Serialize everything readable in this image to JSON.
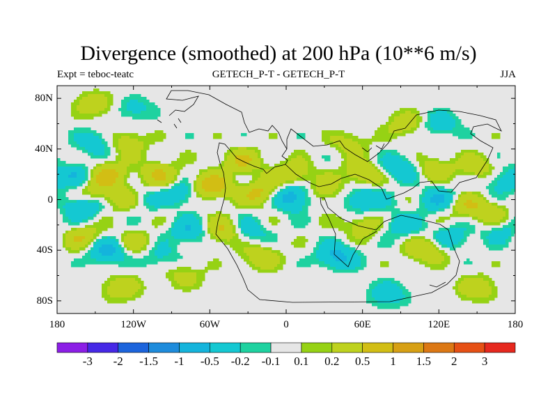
{
  "chart_data": {
    "type": "heatmap",
    "title": "Divergence (smoothed) at 200 hPa (10**6 m/s)",
    "left_string": "Expt = teboc-teatc",
    "center_string": "GETECH_P-T - GETECH_P-T",
    "right_string": "JJA",
    "x_range": [
      -180,
      180
    ],
    "y_range": [
      -90,
      90
    ],
    "x_ticks": [
      {
        "value": -180,
        "label": "180"
      },
      {
        "value": -120,
        "label": "120W"
      },
      {
        "value": -60,
        "label": "60W"
      },
      {
        "value": 0,
        "label": "0"
      },
      {
        "value": 60,
        "label": "60E"
      },
      {
        "value": 120,
        "label": "120E"
      },
      {
        "value": 180,
        "label": "180"
      }
    ],
    "y_ticks": [
      {
        "value": 80,
        "label": "80N"
      },
      {
        "value": 40,
        "label": "40N"
      },
      {
        "value": 0,
        "label": "0"
      },
      {
        "value": -40,
        "label": "40S"
      },
      {
        "value": -80,
        "label": "80S"
      }
    ],
    "contour_levels": [
      {
        "value": -3,
        "label": "-3"
      },
      {
        "value": -2,
        "label": "-2"
      },
      {
        "value": -1.5,
        "label": "-1.5"
      },
      {
        "value": -1,
        "label": "-1"
      },
      {
        "value": -0.5,
        "label": "-0.5"
      },
      {
        "value": -0.2,
        "label": "-0.2"
      },
      {
        "value": -0.1,
        "label": "-0.1"
      },
      {
        "value": 0.1,
        "label": "0.1"
      },
      {
        "value": 0.2,
        "label": "0.2"
      },
      {
        "value": 0.5,
        "label": "0.5"
      },
      {
        "value": 1,
        "label": "1"
      },
      {
        "value": 1.5,
        "label": "1.5"
      },
      {
        "value": 2,
        "label": "2"
      },
      {
        "value": 3,
        "label": "3"
      }
    ],
    "colors": [
      "#8c1ee6",
      "#4628e6",
      "#1c64dc",
      "#1e8cdc",
      "#14b4dc",
      "#14c8d2",
      "#1ed2a0",
      "#e6e6e6",
      "#96d214",
      "#bed21e",
      "#d2be14",
      "#d7a014",
      "#dc7814",
      "#e65014",
      "#e6281e"
    ],
    "anomaly_features": [
      {
        "lon": -150,
        "lat": 75,
        "value": 0.4
      },
      {
        "lon": -120,
        "lat": 72,
        "value": -0.3
      },
      {
        "lon": -150,
        "lat": 45,
        "value": -0.4
      },
      {
        "lon": -125,
        "lat": 45,
        "value": 0.4
      },
      {
        "lon": -165,
        "lat": 20,
        "value": -0.4
      },
      {
        "lon": -140,
        "lat": 20,
        "value": 0.6
      },
      {
        "lon": -100,
        "lat": 20,
        "value": 0.5
      },
      {
        "lon": -150,
        "lat": 5,
        "value": 0.4
      },
      {
        "lon": -160,
        "lat": -5,
        "value": -0.6
      },
      {
        "lon": -125,
        "lat": 0,
        "value": 0.5
      },
      {
        "lon": -115,
        "lat": 0,
        "value": -0.4
      },
      {
        "lon": -80,
        "lat": 5,
        "value": -0.5
      },
      {
        "lon": -60,
        "lat": 10,
        "value": 0.8
      },
      {
        "lon": -35,
        "lat": 30,
        "value": 0.5
      },
      {
        "lon": -20,
        "lat": 5,
        "value": 0.6
      },
      {
        "lon": 5,
        "lat": 20,
        "value": 0.5
      },
      {
        "lon": 5,
        "lat": 2,
        "value": -0.8
      },
      {
        "lon": 30,
        "lat": 5,
        "value": 0.4
      },
      {
        "lon": 60,
        "lat": 20,
        "value": 0.5
      },
      {
        "lon": 50,
        "lat": 45,
        "value": 0.3
      },
      {
        "lon": 90,
        "lat": 25,
        "value": -0.5
      },
      {
        "lon": 95,
        "lat": 60,
        "value": 0.4
      },
      {
        "lon": 120,
        "lat": 60,
        "value": -0.4
      },
      {
        "lon": 115,
        "lat": 25,
        "value": 0.4
      },
      {
        "lon": 150,
        "lat": 25,
        "value": 0.4
      },
      {
        "lon": 170,
        "lat": 15,
        "value": -0.4
      },
      {
        "lon": 60,
        "lat": 0,
        "value": -0.6
      },
      {
        "lon": 120,
        "lat": 0,
        "value": -0.5
      },
      {
        "lon": 140,
        "lat": -5,
        "value": 0.4
      },
      {
        "lon": 160,
        "lat": -10,
        "value": 0.4
      },
      {
        "lon": -160,
        "lat": -30,
        "value": 0.5
      },
      {
        "lon": -140,
        "lat": -40,
        "value": -0.7
      },
      {
        "lon": -120,
        "lat": -35,
        "value": 0.4
      },
      {
        "lon": -100,
        "lat": -45,
        "value": -0.3
      },
      {
        "lon": -75,
        "lat": -25,
        "value": -0.5
      },
      {
        "lon": -50,
        "lat": -25,
        "value": 0.6
      },
      {
        "lon": -30,
        "lat": -25,
        "value": -0.4
      },
      {
        "lon": -20,
        "lat": -45,
        "value": 0.4
      },
      {
        "lon": 40,
        "lat": -45,
        "value": -0.6
      },
      {
        "lon": 60,
        "lat": -20,
        "value": 0.4
      },
      {
        "lon": 90,
        "lat": -20,
        "value": -0.4
      },
      {
        "lon": 110,
        "lat": -40,
        "value": 0.5
      },
      {
        "lon": 130,
        "lat": -30,
        "value": -0.4
      },
      {
        "lon": 170,
        "lat": -25,
        "value": -0.3
      },
      {
        "lon": -130,
        "lat": -70,
        "value": 0.4
      },
      {
        "lon": -80,
        "lat": -60,
        "value": 0.3
      },
      {
        "lon": 80,
        "lat": -75,
        "value": -0.4
      },
      {
        "lon": 150,
        "lat": -70,
        "value": 0.4
      }
    ]
  }
}
